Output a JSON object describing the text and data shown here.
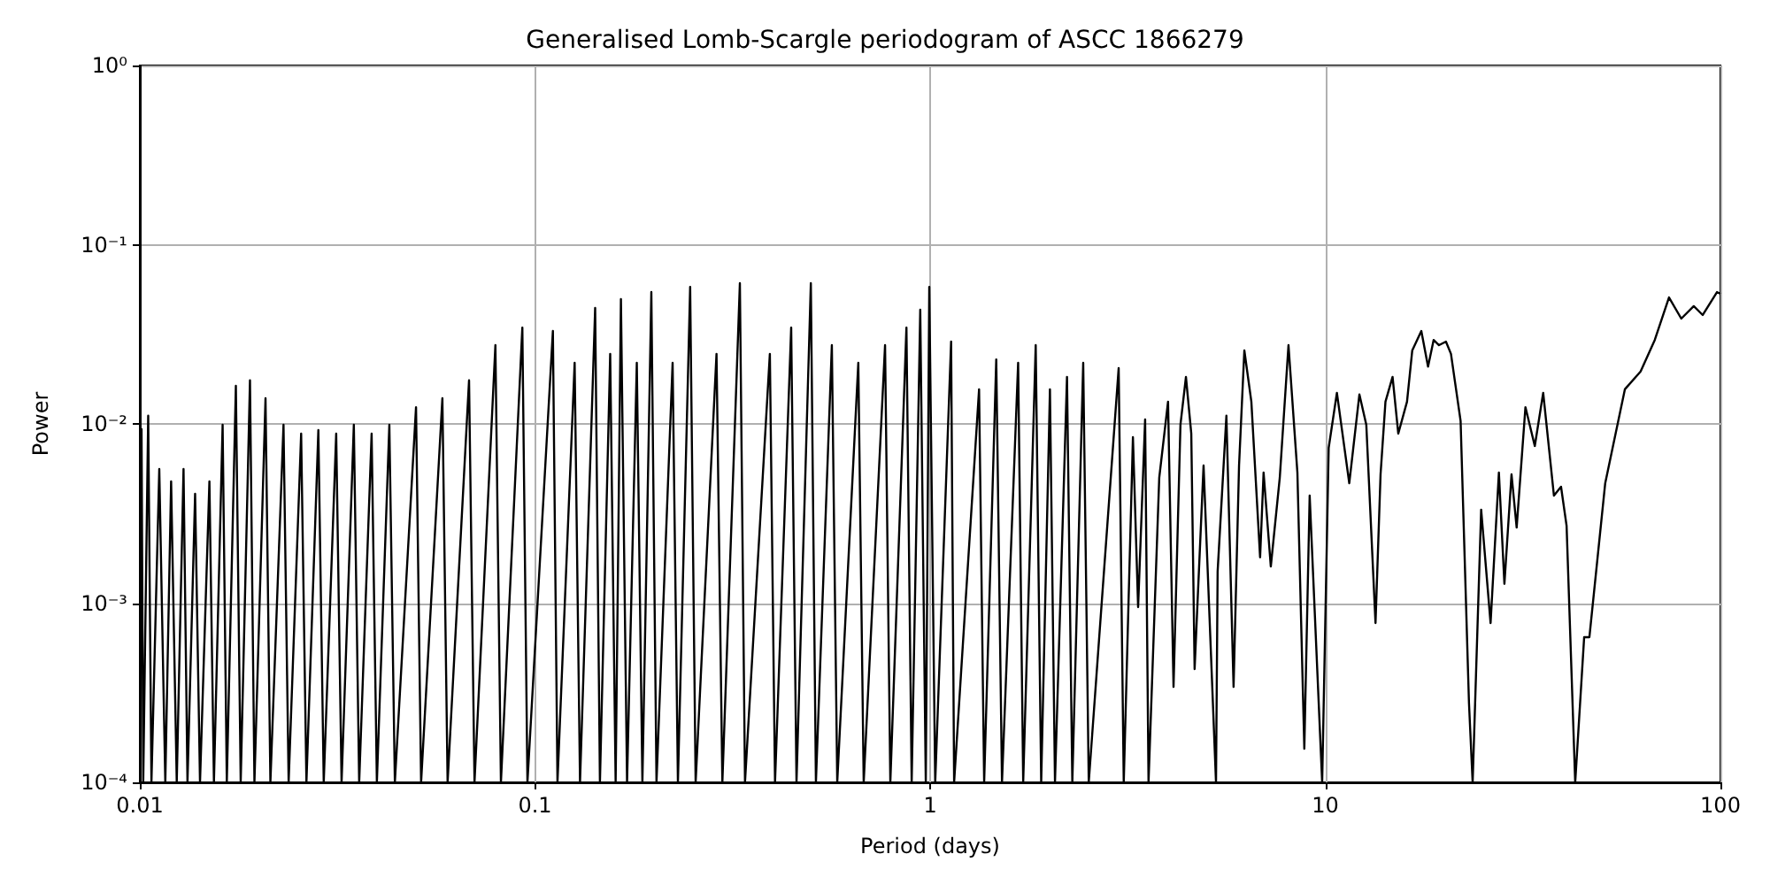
{
  "chart_data": {
    "type": "line",
    "title": "Generalised Lomb-Scargle periodogram of ASCC 1866279",
    "xlabel": "Period (days)",
    "ylabel": "Power",
    "log": "xy",
    "grid": true,
    "marker": "none",
    "line_style": "solid",
    "xlim": [
      0.01,
      100
    ],
    "ylim": [
      0.0001,
      1
    ],
    "xticks": [
      0.01,
      0.1,
      1,
      10,
      100
    ],
    "yticks": [
      {
        "value": 0.0001,
        "label": "10⁻⁴"
      },
      {
        "value": 0.001,
        "label": "10⁻³"
      },
      {
        "value": 0.01,
        "label": "10⁻²"
      },
      {
        "value": 0.1,
        "label": "10⁻¹"
      },
      {
        "value": 1,
        "label": "10⁰"
      }
    ],
    "series": [
      {
        "color": "#000000",
        "x": [
          0.0101,
          0.0102,
          0.0105,
          0.0107,
          0.0112,
          0.0116,
          0.012,
          0.0124,
          0.0129,
          0.0132,
          0.0138,
          0.0142,
          0.015,
          0.0154,
          0.0162,
          0.0166,
          0.0175,
          0.018,
          0.019,
          0.0195,
          0.0208,
          0.0214,
          0.0231,
          0.0238,
          0.0256,
          0.0264,
          0.0283,
          0.0292,
          0.0314,
          0.0324,
          0.0348,
          0.0359,
          0.0386,
          0.0398,
          0.0428,
          0.0442,
          0.05,
          0.0515,
          0.0583,
          0.0601,
          0.0681,
          0.0703,
          0.0794,
          0.082,
          0.0929,
          0.0957,
          0.111,
          0.114,
          0.126,
          0.13,
          0.142,
          0.146,
          0.155,
          0.16,
          0.165,
          0.171,
          0.181,
          0.187,
          0.197,
          0.203,
          0.223,
          0.23,
          0.247,
          0.255,
          0.288,
          0.298,
          0.33,
          0.34,
          0.393,
          0.405,
          0.445,
          0.459,
          0.499,
          0.514,
          0.564,
          0.582,
          0.658,
          0.679,
          0.769,
          0.793,
          0.871,
          0.898,
          0.944,
          0.975,
          0.995,
          1.03,
          1.13,
          1.15,
          1.33,
          1.37,
          1.47,
          1.52,
          1.67,
          1.72,
          1.85,
          1.91,
          2.01,
          2.07,
          2.22,
          2.29,
          2.44,
          2.52,
          3.0,
          3.09,
          3.26,
          3.36,
          3.5,
          3.57,
          3.8,
          4.0,
          4.13,
          4.3,
          4.44,
          4.58,
          4.67,
          4.92,
          5.29,
          5.34,
          5.62,
          5.86,
          6.05,
          6.24,
          6.5,
          6.84,
          6.98,
          7.28,
          7.67,
          8.07,
          8.5,
          8.85,
          9.13,
          9.82,
          10.2,
          10.7,
          11.5,
          12.2,
          12.7,
          13.4,
          13.8,
          14.2,
          14.8,
          15.3,
          16.1,
          16.6,
          17.5,
          18.2,
          18.8,
          19.4,
          20.2,
          20.8,
          22.0,
          23.1,
          23.6,
          24.8,
          26.2,
          27.5,
          28.4,
          29.6,
          30.5,
          32.1,
          33.9,
          35.6,
          37.9,
          39.5,
          40.8,
          42.9,
          45.2,
          46.6,
          51.1,
          57.3,
          62.8,
          68.2,
          74.1,
          79.6,
          85.6,
          90.2,
          98.0,
          100
        ],
        "values": [
          0.00945,
          0.0001,
          0.0111,
          0.0001,
          0.0056,
          0.0001,
          0.00478,
          0.0001,
          0.0056,
          0.0001,
          0.00407,
          0.0001,
          0.00478,
          0.0001,
          0.00989,
          0.0001,
          0.0163,
          0.0001,
          0.0175,
          0.0001,
          0.0139,
          0.0001,
          0.00989,
          0.0001,
          0.00883,
          0.0001,
          0.00923,
          0.0001,
          0.00883,
          0.0001,
          0.00989,
          0.0001,
          0.00883,
          0.0001,
          0.00989,
          0.0001,
          0.0124,
          0.0001,
          0.0139,
          0.0001,
          0.0175,
          0.0001,
          0.0275,
          0.0001,
          0.0345,
          0.0001,
          0.033,
          0.0001,
          0.0219,
          0.0001,
          0.0444,
          0.0001,
          0.0246,
          0.0001,
          0.0497,
          0.0001,
          0.0219,
          0.0001,
          0.0544,
          0.0001,
          0.0219,
          0.0001,
          0.0582,
          0.0001,
          0.0246,
          0.0001,
          0.061,
          0.0001,
          0.0246,
          0.0001,
          0.0345,
          0.0001,
          0.061,
          0.0001,
          0.0275,
          0.0001,
          0.0219,
          0.0001,
          0.0275,
          0.0001,
          0.0345,
          0.0001,
          0.0434,
          0.0001,
          0.0582,
          0.0001,
          0.0288,
          0.0001,
          0.0156,
          0.0001,
          0.0229,
          0.0001,
          0.0219,
          0.0001,
          0.0275,
          0.0001,
          0.0156,
          0.0001,
          0.0183,
          0.0001,
          0.0219,
          0.0001,
          0.0205,
          0.0001,
          0.00843,
          0.00095,
          0.0106,
          0.0001,
          0.005,
          0.0133,
          0.000341,
          0.00989,
          0.0183,
          0.00883,
          0.000429,
          0.00586,
          0.0001,
          0.0015,
          0.0111,
          0.000341,
          0.00586,
          0.0257,
          0.0133,
          0.0018,
          0.00535,
          0.0016,
          0.005,
          0.0275,
          0.00535,
          0.000154,
          0.00398,
          0.0001,
          0.00736,
          0.0149,
          0.00467,
          0.0146,
          0.00989,
          0.000774,
          0.00523,
          0.0133,
          0.0183,
          0.00883,
          0.0133,
          0.0257,
          0.033,
          0.0209,
          0.0294,
          0.0275,
          0.0288,
          0.0246,
          0.0104,
          0.000278,
          0.0001,
          0.00332,
          0.000774,
          0.00535,
          0.00128,
          0.00523,
          0.00264,
          0.0124,
          0.00753,
          0.0149,
          0.00398,
          0.00446,
          0.0027,
          0.0001,
          0.000646,
          0.000646,
          0.00467,
          0.0156,
          0.0196,
          0.0294,
          0.0508,
          0.0387,
          0.0454,
          0.0405,
          0.0544,
          0.0532
        ]
      }
    ]
  }
}
